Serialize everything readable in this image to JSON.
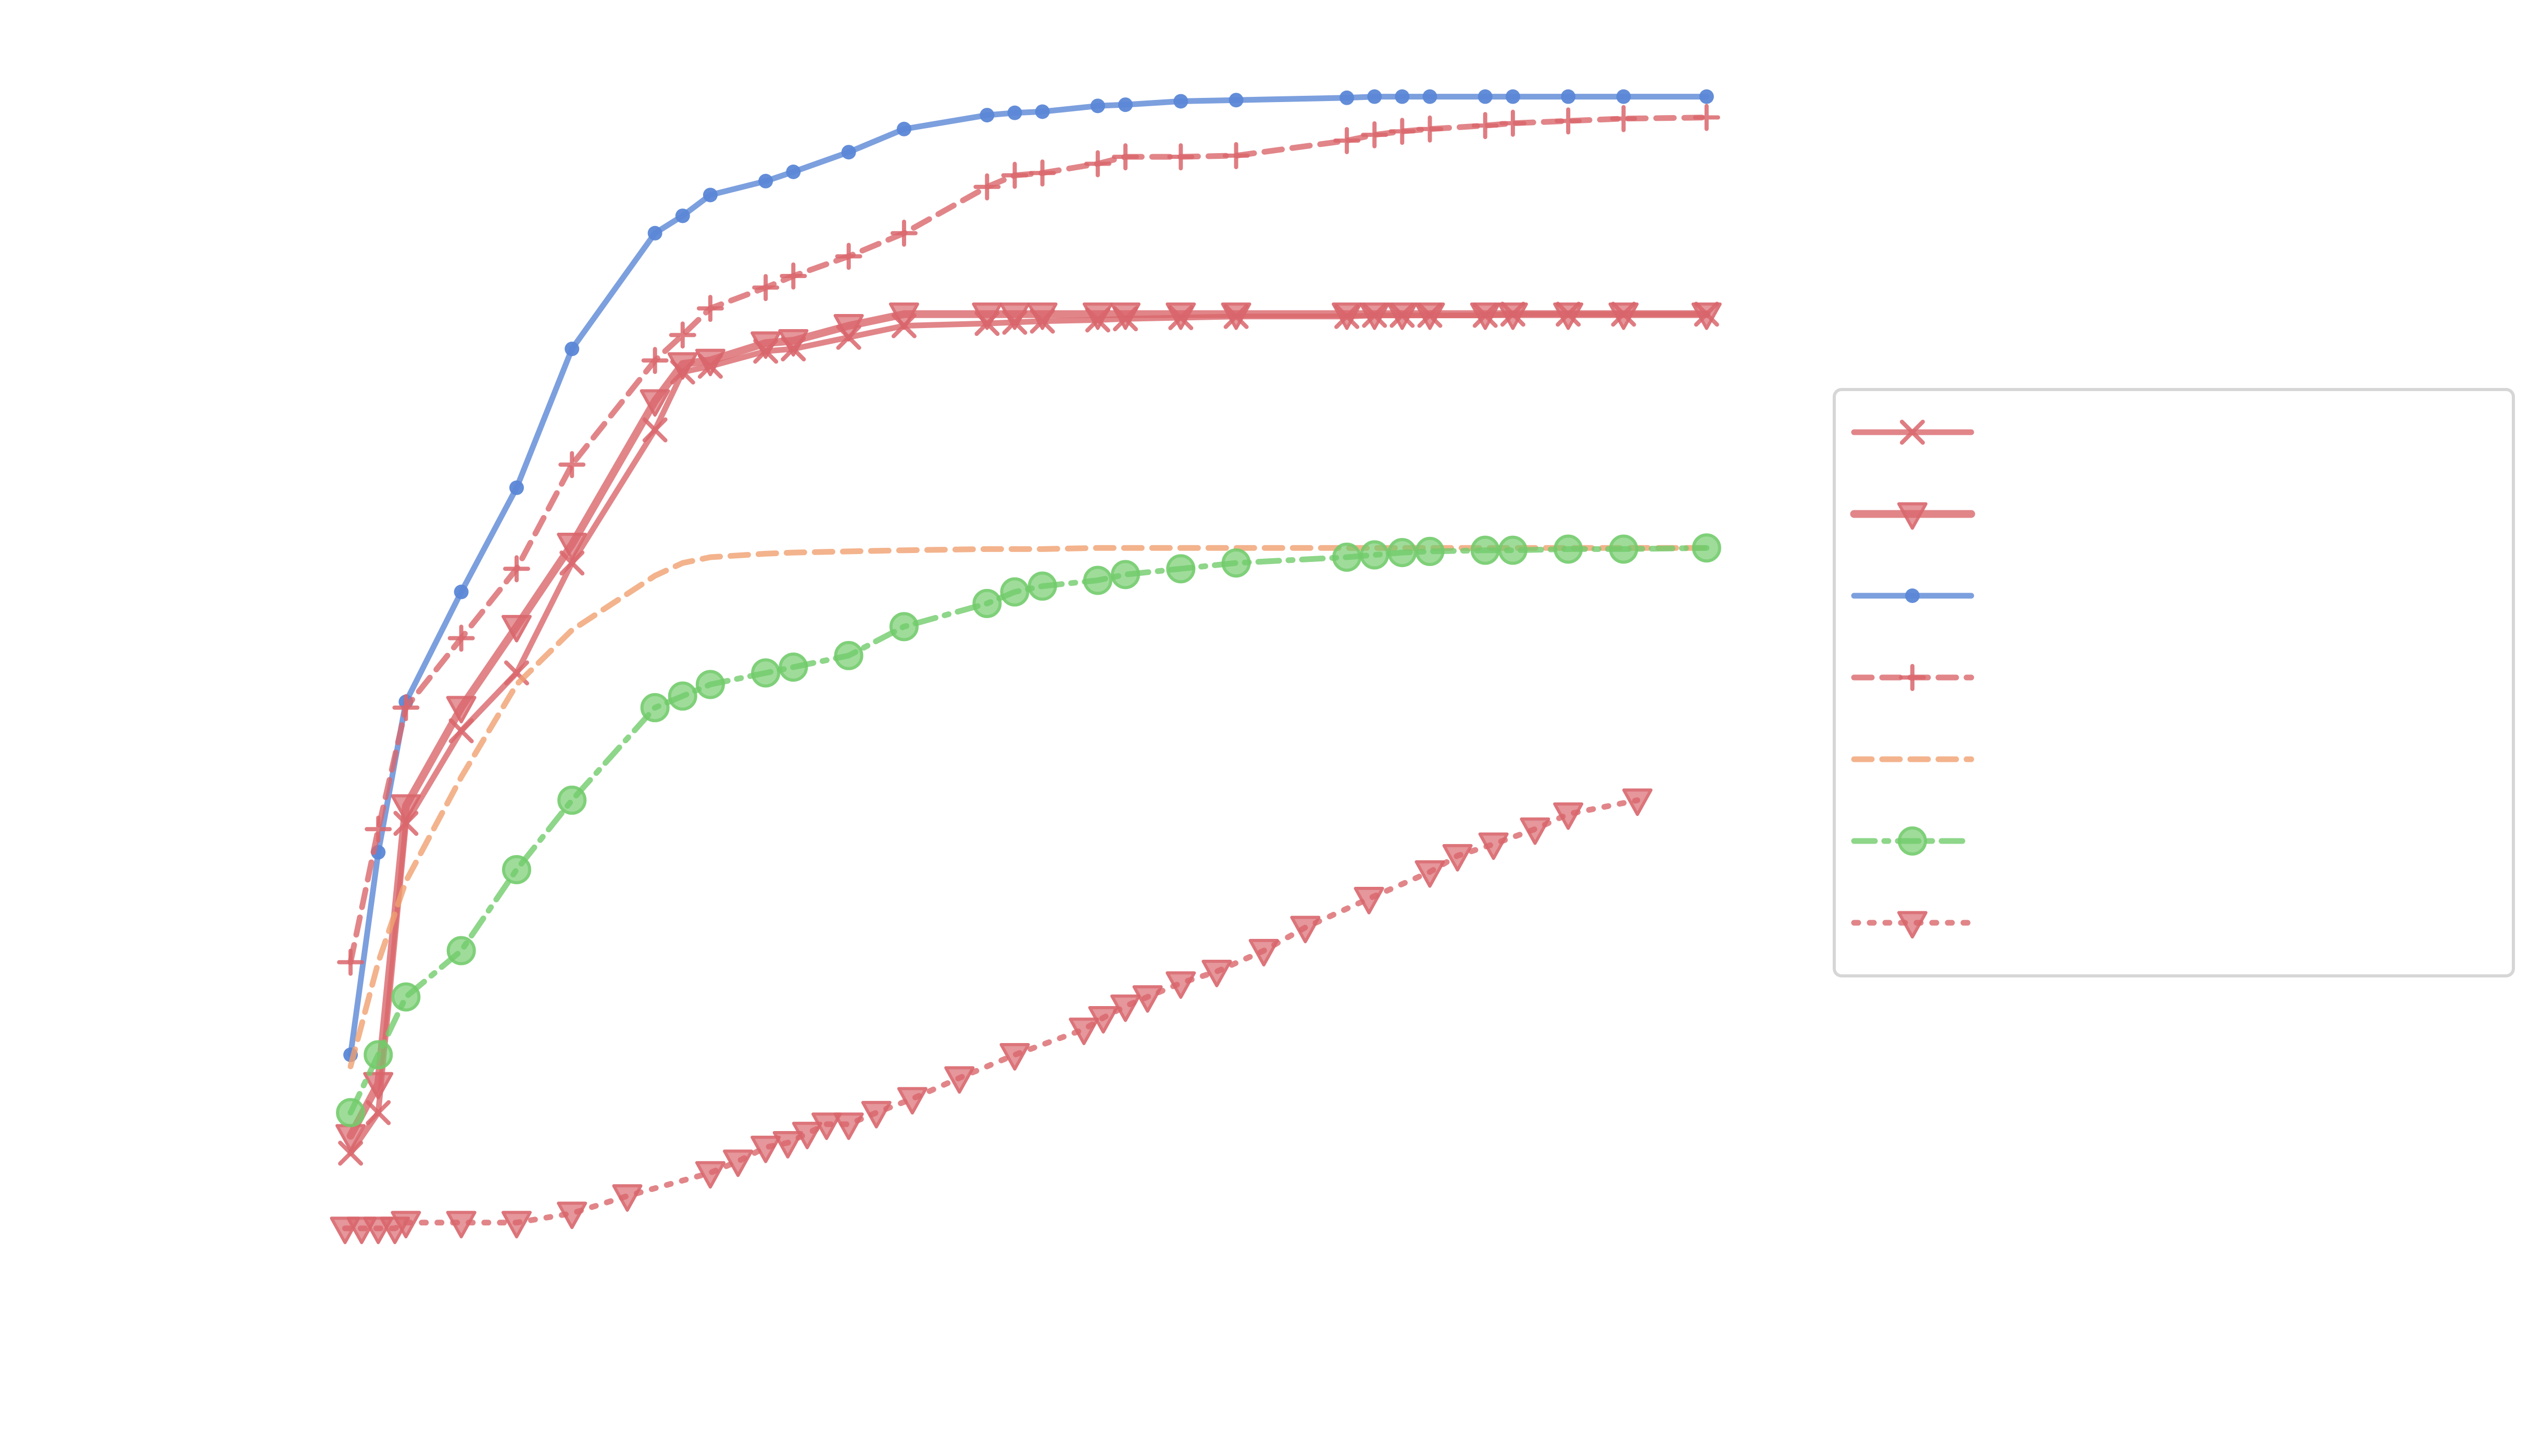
{
  "chart_data": {
    "type": "line",
    "title": "",
    "xlabel": "",
    "ylabel": "",
    "xlim": [
      0,
      51
    ],
    "ylim": [
      0,
      1.08
    ],
    "grid": false,
    "legend_placement": "center-right",
    "series": [
      {
        "name": "",
        "color": "#d9666c",
        "linestyle": "solid",
        "marker": "x",
        "x": [
          1,
          2,
          3,
          5,
          7,
          9,
          12,
          13,
          14,
          16,
          17,
          19,
          21,
          24,
          25,
          26,
          28,
          29,
          31,
          33,
          37,
          38,
          39,
          40,
          42,
          43,
          45,
          47,
          50
        ],
        "y": [
          0.115,
          0.15,
          0.4,
          0.48,
          0.53,
          0.625,
          0.74,
          0.79,
          0.795,
          0.808,
          0.81,
          0.82,
          0.83,
          0.832,
          0.833,
          0.834,
          0.835,
          0.836,
          0.837,
          0.838,
          0.838,
          0.839,
          0.839,
          0.839,
          0.839,
          0.84,
          0.84,
          0.84,
          0.84
        ]
      },
      {
        "name": "",
        "color": "#d9666c",
        "linestyle": "solid-thick",
        "marker": "triangle-down",
        "x": [
          1,
          2,
          3,
          5,
          7,
          9,
          12,
          13,
          14,
          16,
          17,
          19,
          21,
          24,
          25,
          26,
          28,
          29,
          31,
          33,
          37,
          38,
          39,
          40,
          42,
          43,
          45,
          47,
          50
        ],
        "y": [
          0.13,
          0.175,
          0.415,
          0.5,
          0.57,
          0.641,
          0.765,
          0.797,
          0.8,
          0.815,
          0.817,
          0.83,
          0.84,
          0.84,
          0.84,
          0.84,
          0.84,
          0.84,
          0.84,
          0.84,
          0.84,
          0.84,
          0.84,
          0.84,
          0.84,
          0.84,
          0.84,
          0.84,
          0.84
        ]
      },
      {
        "name": "",
        "color": "#5b87d6",
        "linestyle": "solid",
        "marker": "dot",
        "x": [
          1,
          2,
          3,
          5,
          7,
          9,
          12,
          13,
          14,
          16,
          17,
          19,
          21,
          24,
          25,
          26,
          28,
          29,
          31,
          33,
          37,
          38,
          39,
          40,
          42,
          43,
          45,
          47,
          50
        ],
        "y": [
          0.2,
          0.375,
          0.505,
          0.6,
          0.69,
          0.81,
          0.91,
          0.925,
          0.943,
          0.955,
          0.963,
          0.98,
          1.0,
          1.012,
          1.014,
          1.015,
          1.02,
          1.021,
          1.024,
          1.025,
          1.027,
          1.028,
          1.028,
          1.028,
          1.028,
          1.028,
          1.028,
          1.028,
          1.028
        ]
      },
      {
        "name": "",
        "color": "#d9666c",
        "linestyle": "dashed",
        "marker": "plus",
        "x": [
          1,
          2,
          3,
          5,
          7,
          9,
          12,
          13,
          14,
          16,
          17,
          19,
          21,
          24,
          25,
          26,
          28,
          29,
          31,
          33,
          37,
          38,
          39,
          40,
          42,
          43,
          45,
          47,
          50
        ],
        "y": [
          0.28,
          0.395,
          0.5,
          0.56,
          0.62,
          0.71,
          0.8,
          0.822,
          0.845,
          0.863,
          0.873,
          0.89,
          0.91,
          0.95,
          0.96,
          0.962,
          0.97,
          0.976,
          0.976,
          0.977,
          0.99,
          0.995,
          0.998,
          1.0,
          1.003,
          1.005,
          1.007,
          1.009,
          1.01
        ]
      },
      {
        "name": "",
        "color": "#f0a070",
        "linestyle": "dashed",
        "marker": "none",
        "x": [
          1,
          2,
          3,
          5,
          7,
          9,
          12,
          13,
          14,
          16,
          17,
          19,
          21,
          24,
          25,
          26,
          28,
          29,
          31,
          33,
          37,
          38,
          39,
          40,
          42,
          43,
          45,
          47,
          50
        ],
        "y": [
          0.19,
          0.28,
          0.35,
          0.44,
          0.52,
          0.567,
          0.614,
          0.625,
          0.63,
          0.633,
          0.634,
          0.635,
          0.636,
          0.637,
          0.637,
          0.637,
          0.638,
          0.638,
          0.638,
          0.638,
          0.638,
          0.638,
          0.638,
          0.638,
          0.638,
          0.638,
          0.638,
          0.638,
          0.638
        ]
      },
      {
        "name": "",
        "color": "#72cc6b",
        "linestyle": "dashdot",
        "marker": "circle",
        "x": [
          1,
          2,
          3,
          5,
          7,
          9,
          12,
          13,
          14,
          16,
          17,
          19,
          21,
          24,
          25,
          26,
          28,
          29,
          31,
          33,
          37,
          38,
          39,
          40,
          42,
          43,
          45,
          47,
          50
        ],
        "y": [
          0.15,
          0.2,
          0.25,
          0.29,
          0.36,
          0.42,
          0.5,
          0.51,
          0.52,
          0.53,
          0.535,
          0.545,
          0.57,
          0.59,
          0.6,
          0.605,
          0.61,
          0.615,
          0.62,
          0.625,
          0.63,
          0.632,
          0.634,
          0.635,
          0.636,
          0.636,
          0.637,
          0.637,
          0.638
        ]
      },
      {
        "name": "",
        "color": "#d9666c",
        "linestyle": "dotted",
        "marker": "triangle-down",
        "x": [
          0.8,
          1.4,
          2.0,
          2.6,
          3.0,
          5.0,
          7.0,
          9.0,
          11.0,
          14.0,
          15.0,
          16.0,
          16.8,
          17.5,
          18.2,
          19.0,
          20.0,
          21.3,
          23.0,
          25.0,
          27.5,
          28.2,
          29.0,
          29.8,
          31.0,
          32.3,
          34.0,
          35.5,
          37.8,
          40.0,
          41.0,
          42.3,
          43.8,
          45.0,
          47.5
        ],
        "y": [
          0.05,
          0.05,
          0.05,
          0.05,
          0.055,
          0.055,
          0.055,
          0.063,
          0.078,
          0.098,
          0.108,
          0.12,
          0.124,
          0.132,
          0.14,
          0.14,
          0.15,
          0.162,
          0.18,
          0.2,
          0.222,
          0.232,
          0.242,
          0.25,
          0.262,
          0.272,
          0.29,
          0.31,
          0.335,
          0.358,
          0.372,
          0.382,
          0.395,
          0.408,
          0.42
        ]
      }
    ]
  }
}
